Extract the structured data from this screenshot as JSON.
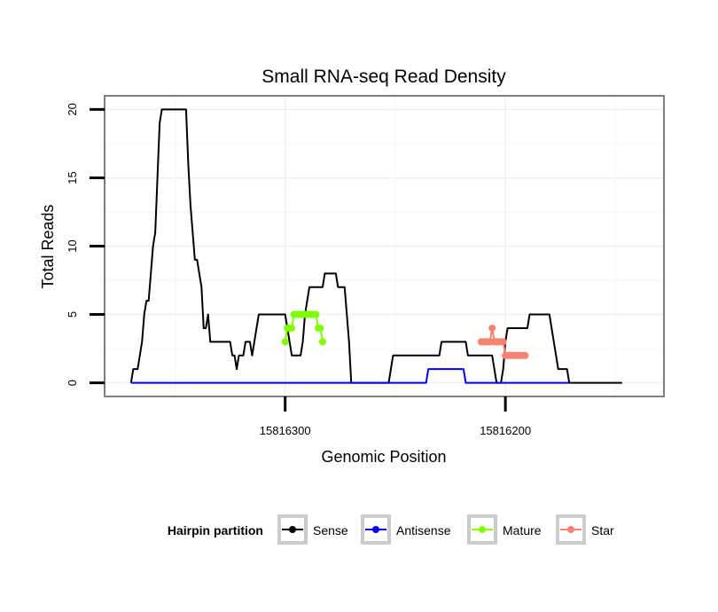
{
  "chart_data": {
    "type": "line",
    "title": "Small RNA-seq Read Density",
    "xlabel": "Genomic Position",
    "ylabel": "Total Reads",
    "x_reversed": true,
    "xlim": [
      15816382,
      15816128
    ],
    "ylim": [
      -1,
      21
    ],
    "x_ticks": [
      15816300,
      15816200
    ],
    "x_tick_labels": [
      "15816300",
      "15816200"
    ],
    "y_ticks": [
      0,
      5,
      10,
      15,
      20
    ],
    "y_tick_labels": [
      "0",
      "5",
      "10",
      "15",
      "20"
    ],
    "legend": {
      "title": "Hairpin partition",
      "position": "bottom",
      "entries": [
        {
          "label": "Sense",
          "color": "#000000"
        },
        {
          "label": "Antisense",
          "color": "#0000ff"
        },
        {
          "label": "Mature",
          "color": "#7fff00"
        },
        {
          "label": "Star",
          "color": "#fa8072"
        }
      ]
    },
    "series": [
      {
        "name": "Sense",
        "color": "#000000",
        "points": [
          [
            15816370,
            0
          ],
          [
            15816369,
            1
          ],
          [
            15816367,
            1
          ],
          [
            15816366,
            2
          ],
          [
            15816365,
            3
          ],
          [
            15816364,
            5
          ],
          [
            15816363,
            6
          ],
          [
            15816362,
            6
          ],
          [
            15816361,
            8
          ],
          [
            15816360,
            10
          ],
          [
            15816359,
            11
          ],
          [
            15816358,
            15
          ],
          [
            15816357,
            19
          ],
          [
            15816356,
            20
          ],
          [
            15816345,
            20
          ],
          [
            15816344,
            16
          ],
          [
            15816343,
            13
          ],
          [
            15816342,
            11
          ],
          [
            15816341,
            9
          ],
          [
            15816340,
            9
          ],
          [
            15816339,
            8
          ],
          [
            15816338,
            7
          ],
          [
            15816337,
            4
          ],
          [
            15816336,
            4
          ],
          [
            15816335,
            5
          ],
          [
            15816334,
            3
          ],
          [
            15816325,
            3
          ],
          [
            15816324,
            2
          ],
          [
            15816323,
            2
          ],
          [
            15816322,
            1
          ],
          [
            15816321,
            2
          ],
          [
            15816319,
            2
          ],
          [
            15816318,
            3
          ],
          [
            15816316,
            3
          ],
          [
            15816315,
            2
          ],
          [
            15816314,
            3
          ],
          [
            15816313,
            4
          ],
          [
            15816312,
            5
          ],
          [
            15816300,
            5
          ],
          [
            15816299,
            4
          ],
          [
            15816298,
            3
          ],
          [
            15816297,
            2
          ],
          [
            15816293,
            2
          ],
          [
            15816292,
            3
          ],
          [
            15816291,
            5
          ],
          [
            15816290,
            6
          ],
          [
            15816289,
            7
          ],
          [
            15816283,
            7
          ],
          [
            15816282,
            8
          ],
          [
            15816277,
            8
          ],
          [
            15816276,
            7
          ],
          [
            15816273,
            7
          ],
          [
            15816272,
            5
          ],
          [
            15816271,
            3
          ],
          [
            15816270,
            0
          ],
          [
            15816253,
            0
          ],
          [
            15816252,
            1
          ],
          [
            15816251,
            2
          ],
          [
            15816230,
            2
          ],
          [
            15816229,
            3
          ],
          [
            15816218,
            3
          ],
          [
            15816217,
            2
          ],
          [
            15816206,
            2
          ],
          [
            15816205,
            1
          ],
          [
            15816204,
            0
          ],
          [
            15816202,
            0
          ],
          [
            15816201,
            1
          ],
          [
            15816200,
            3
          ],
          [
            15816199,
            4
          ],
          [
            15816190,
            4
          ],
          [
            15816189,
            5
          ],
          [
            15816180,
            5
          ],
          [
            15816179,
            4
          ],
          [
            15816178,
            3
          ],
          [
            15816177,
            2
          ],
          [
            15816176,
            1
          ],
          [
            15816172,
            1
          ],
          [
            15816171,
            0
          ],
          [
            15816147,
            0
          ]
        ]
      },
      {
        "name": "Antisense",
        "color": "#0000ff",
        "points": [
          [
            15816370,
            0
          ],
          [
            15816236,
            0
          ],
          [
            15816235,
            1
          ],
          [
            15816219,
            1
          ],
          [
            15816218,
            0
          ],
          [
            15816171,
            0
          ]
        ]
      },
      {
        "name": "Mature",
        "color": "#7fff00",
        "points": [
          [
            15816300,
            3
          ],
          [
            15816299,
            4
          ],
          [
            15816298,
            4
          ],
          [
            15816297,
            4
          ],
          [
            15816296,
            5
          ],
          [
            15816295,
            5
          ],
          [
            15816294,
            5
          ],
          [
            15816293,
            5
          ],
          [
            15816292,
            5
          ],
          [
            15816291,
            5
          ],
          [
            15816290,
            5
          ],
          [
            15816289,
            5
          ],
          [
            15816288,
            5
          ],
          [
            15816287,
            5
          ],
          [
            15816286,
            5
          ],
          [
            15816285,
            4
          ],
          [
            15816284,
            4
          ],
          [
            15816283,
            3
          ]
        ]
      },
      {
        "name": "Star",
        "color": "#fa8072",
        "points": [
          [
            15816211,
            3
          ],
          [
            15816210,
            3
          ],
          [
            15816209,
            3
          ],
          [
            15816208,
            3
          ],
          [
            15816207,
            3
          ],
          [
            15816206,
            4
          ],
          [
            15816205,
            3
          ],
          [
            15816204,
            3
          ],
          [
            15816203,
            3
          ],
          [
            15816202,
            3
          ],
          [
            15816201,
            3
          ],
          [
            15816200,
            2
          ],
          [
            15816199,
            2
          ],
          [
            15816198,
            2
          ],
          [
            15816197,
            2
          ],
          [
            15816196,
            2
          ],
          [
            15816195,
            2
          ],
          [
            15816194,
            2
          ],
          [
            15816193,
            2
          ],
          [
            15816192,
            2
          ],
          [
            15816191,
            2
          ]
        ]
      }
    ]
  }
}
